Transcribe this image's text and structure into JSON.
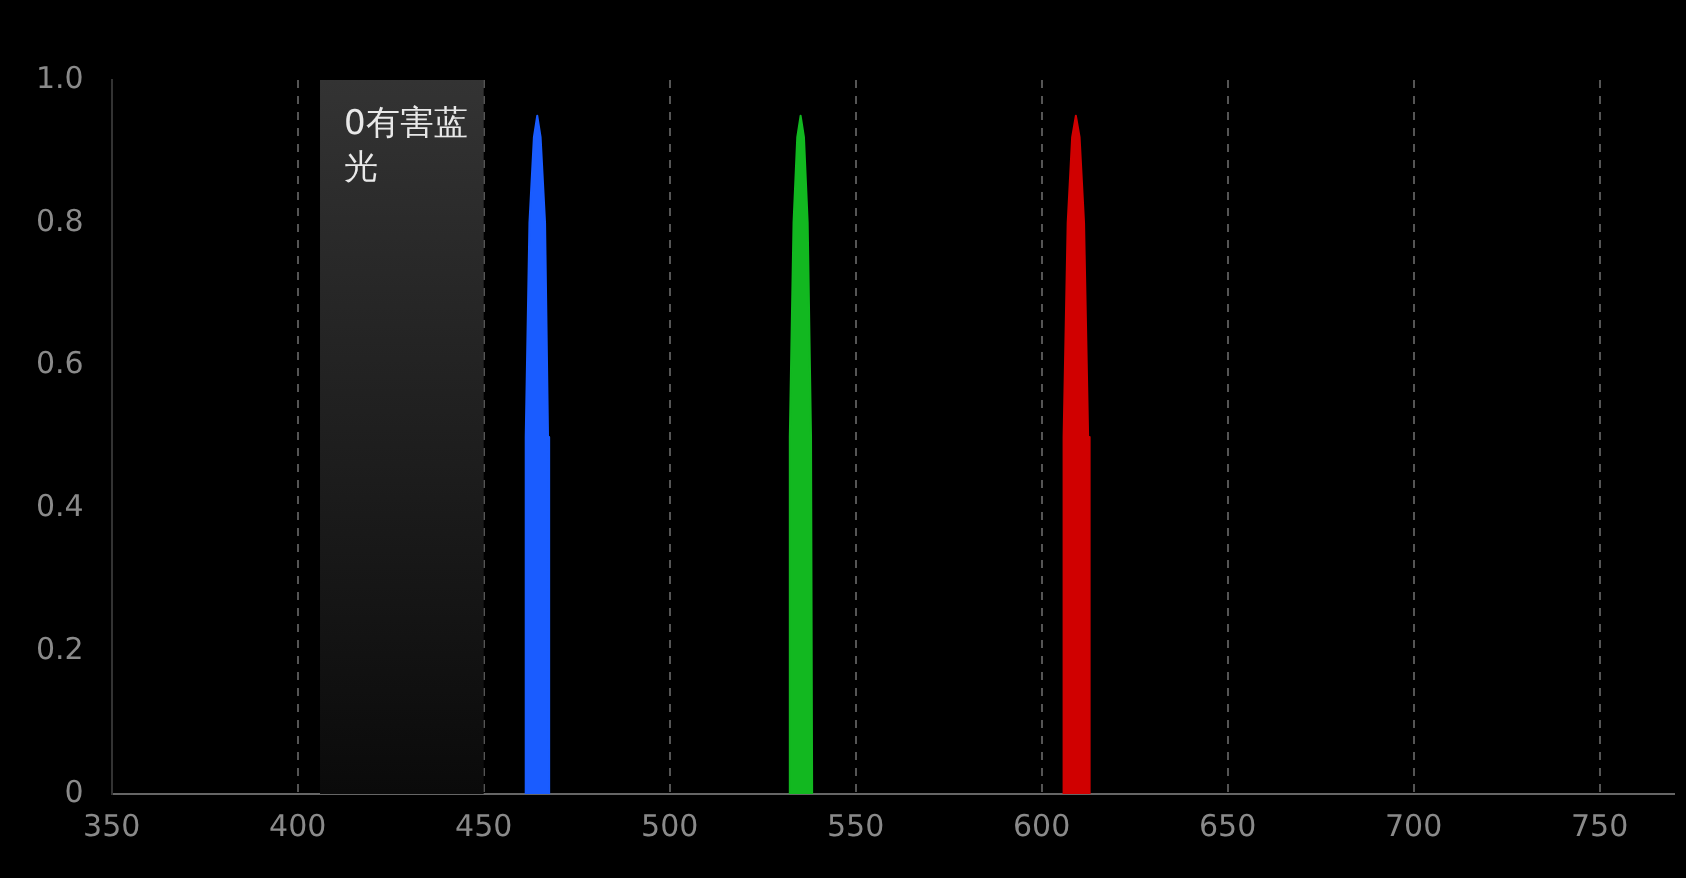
{
  "chart_data": {
    "type": "area",
    "xlim": [
      350,
      770
    ],
    "xticks": [
      350,
      400,
      450,
      500,
      550,
      600,
      650,
      700,
      750
    ],
    "ylim": [
      0,
      1
    ],
    "yticks": [
      0,
      0.2,
      0.4,
      0.6,
      0.8,
      {
        "value": 1,
        "label": "1.0"
      }
    ],
    "grid": "x",
    "line_style": "dashed",
    "marker": "none",
    "bands": [
      {
        "axis": "x",
        "from": 406,
        "to": 450,
        "label": "0有害蓝光",
        "color": "#333333"
      }
    ],
    "series": [
      {
        "color": "#1a5cff",
        "x": [
          461,
          461.3,
          462.3,
          463.5,
          464.4,
          465.3,
          466.5,
          467.3,
          467.6
        ],
        "values": [
          0,
          0.5,
          0.8,
          0.92,
          0.95,
          0.92,
          0.8,
          0.5,
          0
        ]
      },
      {
        "color": "#12b820",
        "x": [
          532,
          532.3,
          533.3,
          534.3,
          535.2,
          536.1,
          537.1,
          538,
          538.3
        ],
        "values": [
          0,
          0.5,
          0.8,
          0.92,
          0.95,
          0.92,
          0.8,
          0.5,
          0
        ]
      },
      {
        "color": "#d00000",
        "x": [
          605.6,
          605.9,
          607,
          608.2,
          609.2,
          610.2,
          611.4,
          612.5,
          612.9
        ],
        "values": [
          0,
          0.5,
          0.8,
          0.92,
          0.95,
          0.92,
          0.8,
          0.5,
          0
        ]
      }
    ]
  }
}
